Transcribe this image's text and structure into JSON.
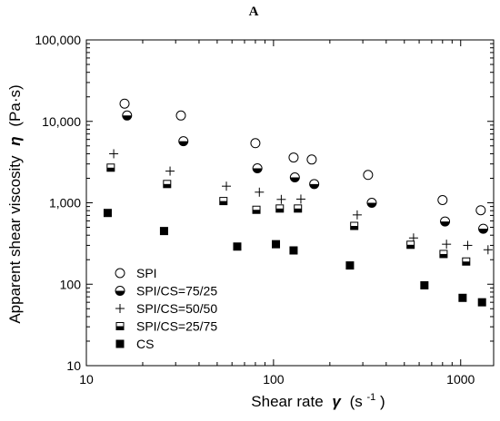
{
  "chart_data": {
    "type": "scatter",
    "panel_label": "A",
    "title": "",
    "xlabel_main": "Shear rate",
    "xlabel_symbol": "γ",
    "xlabel_unit_prefix": "(s",
    "xlabel_unit_sup": "-1",
    "xlabel_unit_suffix": ")",
    "ylabel_main": "Apparent shear viscosity",
    "ylabel_symbol": "η",
    "ylabel_unit": "(Pa·s)",
    "x_scale": "log",
    "y_scale": "log",
    "xlim": [
      10,
      1500
    ],
    "ylim": [
      10,
      100000
    ],
    "x_ticks": [
      {
        "value": 10,
        "label": "10"
      },
      {
        "value": 100,
        "label": "100"
      },
      {
        "value": 1000,
        "label": "1000"
      }
    ],
    "y_ticks": [
      {
        "value": 10,
        "label": "10"
      },
      {
        "value": 100,
        "label": "100"
      },
      {
        "value": 1000,
        "label": "1,000"
      },
      {
        "value": 10000,
        "label": "10,000"
      },
      {
        "value": 100000,
        "label": "100,000"
      }
    ],
    "grid": false,
    "legend_position": "bottom-left",
    "series": [
      {
        "name": "SPI",
        "marker": "circle-open",
        "points": [
          [
            16,
            16500
          ],
          [
            32,
            11800
          ],
          [
            80,
            5400
          ],
          [
            128,
            3600
          ],
          [
            160,
            3400
          ],
          [
            320,
            2200
          ],
          [
            800,
            1080
          ],
          [
            1280,
            810
          ]
        ]
      },
      {
        "name": "SPI/CS=75/25",
        "marker": "circle-half",
        "points": [
          [
            16.5,
            11800
          ],
          [
            33,
            5700
          ],
          [
            82,
            2650
          ],
          [
            130,
            2050
          ],
          [
            165,
            1700
          ],
          [
            335,
            1000
          ],
          [
            825,
            590
          ],
          [
            1320,
            480
          ]
        ]
      },
      {
        "name": "SPI/CS=50/50",
        "marker": "plus",
        "points": [
          [
            14,
            4000
          ],
          [
            28,
            2450
          ],
          [
            56,
            1600
          ],
          [
            84,
            1350
          ],
          [
            110,
            1100
          ],
          [
            140,
            1110
          ],
          [
            280,
            710
          ],
          [
            560,
            370
          ],
          [
            840,
            310
          ],
          [
            1090,
            300
          ],
          [
            1400,
            265
          ]
        ]
      },
      {
        "name": "SPI/CS=25/75",
        "marker": "square-half",
        "points": [
          [
            13.5,
            2700
          ],
          [
            27,
            1700
          ],
          [
            54,
            1050
          ],
          [
            81,
            820
          ],
          [
            108,
            850
          ],
          [
            135,
            850
          ],
          [
            270,
            520
          ],
          [
            540,
            305
          ],
          [
            810,
            235
          ],
          [
            1070,
            190
          ]
        ]
      },
      {
        "name": "CS",
        "marker": "square-filled",
        "points": [
          [
            13,
            750
          ],
          [
            26,
            450
          ],
          [
            64,
            290
          ],
          [
            103,
            310
          ],
          [
            128,
            260
          ],
          [
            256,
            170
          ],
          [
            640,
            97
          ],
          [
            1024,
            68
          ],
          [
            1300,
            60
          ]
        ]
      }
    ]
  }
}
